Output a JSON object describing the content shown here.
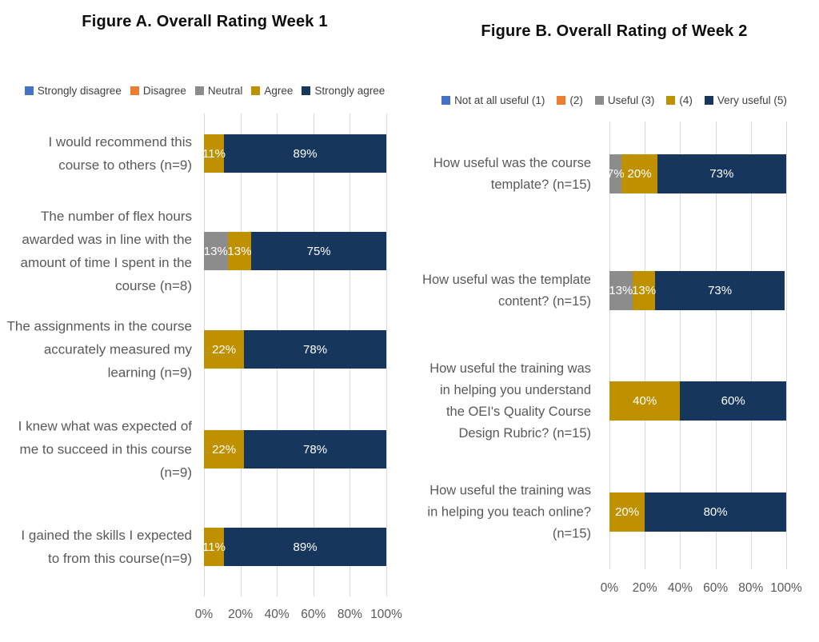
{
  "chart_data": [
    {
      "type": "bar",
      "orientation": "horizontal",
      "stacked": true,
      "title": "Figure A. Overall Rating Week 1",
      "legend_position": "top",
      "grid": true,
      "xlim": [
        0,
        100
      ],
      "x_ticks": [
        "0%",
        "20%",
        "40%",
        "60%",
        "80%",
        "100%"
      ],
      "data_label_format": "percent",
      "data_label_color": "#ffffff",
      "gridline_color": "#d9d9d9",
      "categories": [
        "I would recommend this course to others (n=9)",
        "The number of flex hours awarded was in line with the amount of time I spent in the course (n=8)",
        "The assignments in the course accurately measured my learning (n=9)",
        "I knew what was expected of me to succeed in this course (n=9)",
        "I gained the skills I expected to from this course(n=9)"
      ],
      "series": [
        {
          "name": "Strongly disagree",
          "color": "#4472C4",
          "values": [
            0,
            0,
            0,
            0,
            0
          ]
        },
        {
          "name": "Disagree",
          "color": "#ED7D31",
          "values": [
            0,
            0,
            0,
            0,
            0
          ]
        },
        {
          "name": "Neutral",
          "color": "#8C8C8C",
          "values": [
            0,
            13,
            0,
            0,
            0
          ]
        },
        {
          "name": "Agree",
          "color": "#BF9000",
          "values": [
            11,
            13,
            22,
            22,
            11
          ]
        },
        {
          "name": "Strongly agree",
          "color": "#17365D",
          "values": [
            89,
            75,
            78,
            78,
            89
          ]
        }
      ]
    },
    {
      "type": "bar",
      "orientation": "horizontal",
      "stacked": true,
      "title": "Figure B. Overall Rating of Week 2",
      "legend_position": "top",
      "grid": true,
      "xlim": [
        0,
        100
      ],
      "x_ticks": [
        "0%",
        "20%",
        "40%",
        "60%",
        "80%",
        "100%"
      ],
      "data_label_format": "percent",
      "data_label_color": "#ffffff",
      "gridline_color": "#d9d9d9",
      "categories": [
        "How useful was the course template? (n=15)",
        "How useful was the template content? (n=15)",
        "How useful the training was in helping you understand the OEI's Quality Course Design Rubric? (n=15)",
        "How useful the training was in helping you teach online? (n=15)"
      ],
      "series": [
        {
          "name": "Not at all useful (1)",
          "color": "#4472C4",
          "values": [
            0,
            0,
            0,
            0
          ]
        },
        {
          "name": "(2)",
          "color": "#ED7D31",
          "values": [
            0,
            0,
            0,
            0
          ]
        },
        {
          "name": "Useful (3)",
          "color": "#8C8C8C",
          "values": [
            7,
            13,
            0,
            0
          ]
        },
        {
          "name": "(4)",
          "color": "#BF9000",
          "values": [
            20,
            13,
            40,
            20
          ]
        },
        {
          "name": "Very useful (5)",
          "color": "#17365D",
          "values": [
            73,
            73,
            60,
            80
          ]
        }
      ]
    }
  ]
}
